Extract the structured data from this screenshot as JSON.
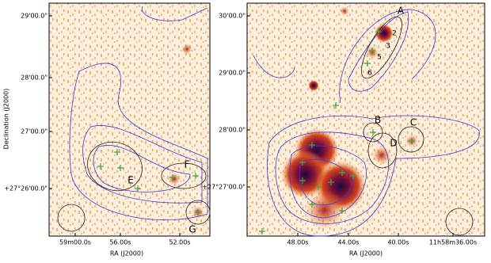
{
  "panels": [
    {
      "ylabel": "Declination (J2000)",
      "xlabel": "RA (J2000)",
      "yticks": [
        "29'00.0\"",
        "28'00.0\"",
        "27'00.0\"",
        "+27°26'00.0\""
      ],
      "xticks": [
        "59m00.0s",
        "56.00s",
        "52.00s"
      ],
      "regions": [
        "E",
        "F",
        "G"
      ]
    },
    {
      "xlabel": "RA (J2000)",
      "yticks": [
        "30'00.0\"",
        "29'00.0\"",
        "28'00.0\"",
        "+27°27'00.0\""
      ],
      "xticks": [
        "48.00s",
        "44.00s",
        "40.00s",
        "11h58m36.00s"
      ],
      "regions": [
        "A",
        "B",
        "C",
        "D",
        "2",
        "3",
        "5",
        "6"
      ]
    }
  ]
}
